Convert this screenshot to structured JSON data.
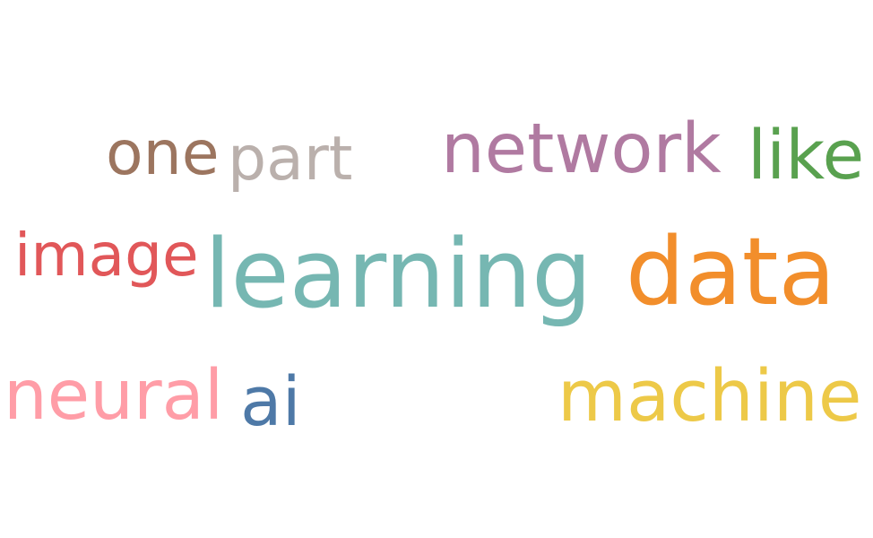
{
  "words": [
    {
      "id": "one",
      "text": "one",
      "color": "#9c755f"
    },
    {
      "id": "part",
      "text": "part",
      "color": "#bab0ac"
    },
    {
      "id": "network",
      "text": "network",
      "color": "#b07aa1"
    },
    {
      "id": "like",
      "text": "like",
      "color": "#59a14f"
    },
    {
      "id": "image",
      "text": "image",
      "color": "#e15759"
    },
    {
      "id": "learning",
      "text": "learning",
      "color": "#76b7b2"
    },
    {
      "id": "data",
      "text": "data",
      "color": "#f28e2b"
    },
    {
      "id": "neural",
      "text": "neural",
      "color": "#ff9da7"
    },
    {
      "id": "ai",
      "text": "ai",
      "color": "#4e79a7"
    },
    {
      "id": "machine",
      "text": "machine",
      "color": "#edc948"
    }
  ]
}
